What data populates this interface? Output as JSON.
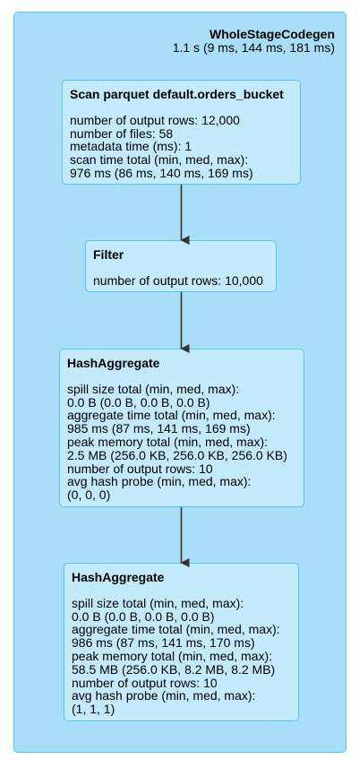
{
  "stage": {
    "name": "WholeStageCodegen",
    "timing": "1.1 s (9 ms, 144 ms, 181 ms)"
  },
  "nodes": [
    {
      "title": "Scan parquet default.orders_bucket",
      "lines": [
        "number of output rows: 12,000",
        "number of files: 58",
        "metadata time (ms): 1",
        "scan time total (min, med, max):",
        "976 ms (86 ms, 140 ms, 169 ms)"
      ]
    },
    {
      "title": "Filter",
      "lines": [
        "number of output rows: 10,000"
      ]
    },
    {
      "title": "HashAggregate",
      "lines": [
        "spill size total (min, med, max):",
        "0.0 B (0.0 B, 0.0 B, 0.0 B)",
        "aggregate time total (min, med, max):",
        "985 ms (87 ms, 141 ms, 169 ms)",
        "peak memory total (min, med, max):",
        "2.5 MB (256.0 KB, 256.0 KB, 256.0 KB)",
        "number of output rows: 10",
        "avg hash probe (min, med, max):",
        "(0, 0, 0)"
      ]
    },
    {
      "title": "HashAggregate",
      "lines": [
        "spill size total (min, med, max):",
        "0.0 B (0.0 B, 0.0 B, 0.0 B)",
        "aggregate time total (min, med, max):",
        "986 ms (87 ms, 141 ms, 170 ms)",
        "peak memory total (min, med, max):",
        "58.5 MB (256.0 KB, 8.2 MB, 8.2 MB)",
        "number of output rows: 10",
        "avg hash probe (min, med, max):",
        "(1, 1, 1)"
      ]
    }
  ],
  "colors": {
    "stage_fill": "#a8def7",
    "node_fill": "#c3eafb",
    "border": "#59c3ee",
    "edge": "#333333"
  }
}
